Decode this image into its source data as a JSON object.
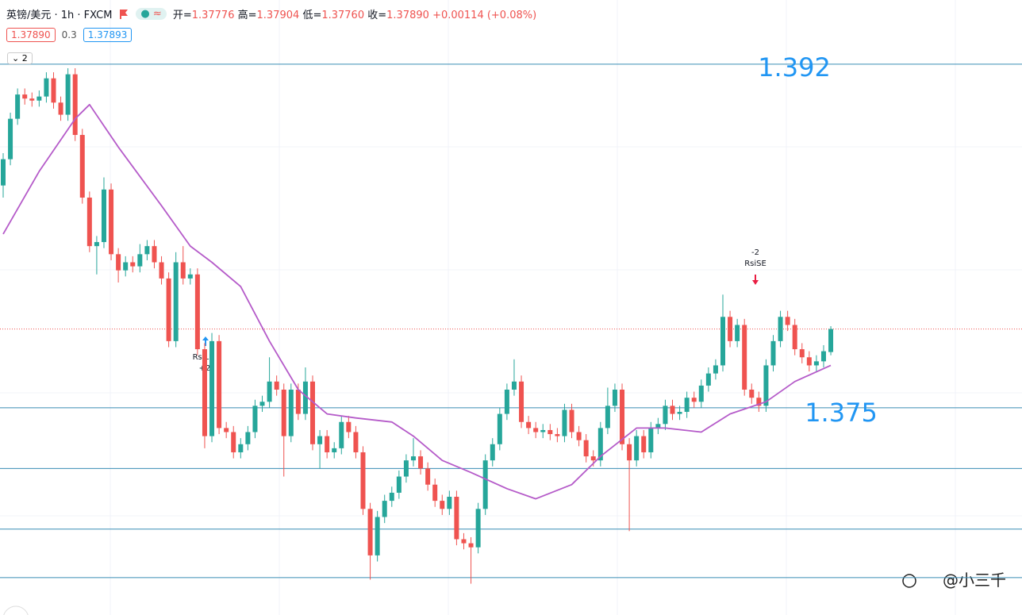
{
  "header": {
    "symbol": "英镑/美元 · 1h · FXCM",
    "ohlc": [
      {
        "label": "开=",
        "value": "1.37776"
      },
      {
        "label": "高=",
        "value": "1.37904"
      },
      {
        "label": "低=",
        "value": "1.37760"
      },
      {
        "label": "收=",
        "value": "1.37890"
      }
    ],
    "change": "+0.00114 (+0.08%)",
    "bid": "1.37890",
    "spread": "0.3",
    "ask": "1.37893",
    "collapse": "2"
  },
  "watermark": "@小三千",
  "annotations": {
    "long": {
      "name": "RsiLE",
      "qty": "+2"
    },
    "short": {
      "name": "RsiSE",
      "qty": "-2"
    }
  },
  "chart_data": {
    "type": "candlestick",
    "ylim": [
      1.36534,
      1.39282
    ],
    "up_color": "#26a69a",
    "down_color": "#ef5350",
    "open": [
      1.386,
      1.3873,
      1.3893,
      1.3905,
      1.3903,
      1.3902,
      1.3904,
      1.3913,
      1.3901,
      1.3895,
      1.3915,
      1.3885,
      1.3854,
      1.383,
      1.3832,
      1.3858,
      1.3826,
      1.3818,
      1.3822,
      1.382,
      1.3826,
      1.383,
      1.3822,
      1.3814,
      1.3783,
      1.3822,
      1.3814,
      1.3816,
      1.3779,
      1.3736,
      1.3783,
      1.374,
      1.3738,
      1.3728,
      1.3732,
      1.3738,
      1.3751,
      1.3753,
      1.3763,
      1.3759,
      1.3736,
      1.3759,
      1.3747,
      1.3763,
      1.3732,
      1.3736,
      1.3728,
      1.373,
      1.3743,
      1.3738,
      1.3728,
      1.37,
      1.3677,
      1.3696,
      1.3704,
      1.3708,
      1.3716,
      1.3724,
      1.3726,
      1.372,
      1.3712,
      1.3704,
      1.37,
      1.3706,
      1.3685,
      1.3683,
      1.3681,
      1.37,
      1.3724,
      1.3732,
      1.3747,
      1.3759,
      1.3763,
      1.3743,
      1.374,
      1.3738,
      1.3739,
      1.3737,
      1.3736,
      1.3749,
      1.3738,
      1.3734,
      1.3726,
      1.3724,
      1.374,
      1.3751,
      1.3759,
      1.3732,
      1.3724,
      1.3736,
      1.3728,
      1.374,
      1.3742,
      1.3751,
      1.3747,
      1.3748,
      1.3755,
      1.3753,
      1.3761,
      1.3767,
      1.3771,
      1.3795,
      1.3783,
      1.3791,
      1.3759,
      1.3755,
      1.3751,
      1.3771,
      1.3783,
      1.3795,
      1.3791,
      1.3779,
      1.3775,
      1.3771,
      1.3773,
      1.37776
    ],
    "high": [
      1.3876,
      1.3896,
      1.3908,
      1.3908,
      1.3906,
      1.3907,
      1.3916,
      1.3916,
      1.3904,
      1.3918,
      1.3918,
      1.3888,
      1.3857,
      1.3835,
      1.3864,
      1.3861,
      1.3829,
      1.3825,
      1.3825,
      1.3831,
      1.3833,
      1.3833,
      1.3825,
      1.3817,
      1.3827,
      1.383,
      1.3819,
      1.3819,
      1.3782,
      1.3787,
      1.3786,
      1.3743,
      1.3741,
      1.3735,
      1.3741,
      1.3754,
      1.3756,
      1.3775,
      1.3766,
      1.3762,
      1.3762,
      1.3762,
      1.377,
      1.3766,
      1.3739,
      1.3739,
      1.3733,
      1.3746,
      1.3746,
      1.3741,
      1.3731,
      1.3703,
      1.3699,
      1.3707,
      1.3711,
      1.3719,
      1.3727,
      1.3735,
      1.3729,
      1.3723,
      1.3715,
      1.3707,
      1.3709,
      1.3709,
      1.3688,
      1.3686,
      1.3703,
      1.3727,
      1.3735,
      1.375,
      1.3762,
      1.3774,
      1.3766,
      1.3746,
      1.3743,
      1.3742,
      1.3742,
      1.374,
      1.3752,
      1.3752,
      1.3741,
      1.3737,
      1.3729,
      1.3743,
      1.376,
      1.3762,
      1.3762,
      1.3735,
      1.3739,
      1.3739,
      1.3743,
      1.3745,
      1.3754,
      1.3754,
      1.3751,
      1.3758,
      1.3758,
      1.3764,
      1.377,
      1.3774,
      1.3806,
      1.3798,
      1.3794,
      1.3794,
      1.3762,
      1.3758,
      1.3774,
      1.3786,
      1.3798,
      1.3798,
      1.3794,
      1.3782,
      1.3778,
      1.3776,
      1.3781,
      1.37904
    ],
    "low": [
      1.3854,
      1.387,
      1.389,
      1.39,
      1.3899,
      1.3899,
      1.3901,
      1.3898,
      1.3892,
      1.3892,
      1.3882,
      1.3851,
      1.3827,
      1.3816,
      1.3829,
      1.3823,
      1.3812,
      1.3815,
      1.3817,
      1.3817,
      1.3823,
      1.3819,
      1.3811,
      1.378,
      1.378,
      1.3811,
      1.3811,
      1.3776,
      1.373,
      1.3733,
      1.3737,
      1.3735,
      1.3725,
      1.3725,
      1.3729,
      1.3735,
      1.3748,
      1.375,
      1.3756,
      1.3716,
      1.3733,
      1.3744,
      1.3744,
      1.3729,
      1.372,
      1.3725,
      1.3725,
      1.3727,
      1.3735,
      1.3725,
      1.3697,
      1.3665,
      1.3674,
      1.3693,
      1.3701,
      1.3705,
      1.3713,
      1.3721,
      1.3717,
      1.3709,
      1.3701,
      1.3697,
      1.3697,
      1.3682,
      1.368,
      1.3663,
      1.3678,
      1.3697,
      1.3721,
      1.3729,
      1.3744,
      1.3756,
      1.374,
      1.3737,
      1.3735,
      1.3735,
      1.3734,
      1.3733,
      1.3733,
      1.3735,
      1.3731,
      1.3723,
      1.3721,
      1.3721,
      1.3737,
      1.3748,
      1.3729,
      1.3689,
      1.3721,
      1.3725,
      1.3725,
      1.3737,
      1.3739,
      1.3744,
      1.3744,
      1.3745,
      1.375,
      1.375,
      1.3758,
      1.3764,
      1.3768,
      1.378,
      1.378,
      1.3756,
      1.3752,
      1.3748,
      1.3748,
      1.3768,
      1.378,
      1.3788,
      1.3776,
      1.3772,
      1.3768,
      1.3768,
      1.377,
      1.3776
    ],
    "close": [
      1.3873,
      1.3893,
      1.3905,
      1.3903,
      1.3902,
      1.3904,
      1.3913,
      1.3901,
      1.3895,
      1.3915,
      1.3885,
      1.3854,
      1.383,
      1.3832,
      1.3858,
      1.3826,
      1.3818,
      1.3822,
      1.382,
      1.3826,
      1.383,
      1.3822,
      1.3814,
      1.3783,
      1.3822,
      1.3814,
      1.3816,
      1.3779,
      1.3736,
      1.3783,
      1.374,
      1.3738,
      1.3728,
      1.3732,
      1.3738,
      1.3751,
      1.3753,
      1.3763,
      1.3759,
      1.3736,
      1.3759,
      1.3747,
      1.3763,
      1.3732,
      1.3736,
      1.3728,
      1.373,
      1.3743,
      1.3738,
      1.3728,
      1.37,
      1.3677,
      1.3696,
      1.3704,
      1.3708,
      1.3716,
      1.3724,
      1.3726,
      1.372,
      1.3712,
      1.3704,
      1.37,
      1.3706,
      1.3685,
      1.3683,
      1.3681,
      1.37,
      1.3724,
      1.3732,
      1.3747,
      1.3759,
      1.3763,
      1.3743,
      1.374,
      1.3738,
      1.3739,
      1.3737,
      1.3736,
      1.3749,
      1.3738,
      1.3734,
      1.3726,
      1.3724,
      1.374,
      1.3751,
      1.3759,
      1.3732,
      1.3724,
      1.3736,
      1.3728,
      1.374,
      1.3742,
      1.3751,
      1.3747,
      1.3748,
      1.3755,
      1.3753,
      1.3761,
      1.3767,
      1.3771,
      1.3795,
      1.3783,
      1.3791,
      1.3759,
      1.3755,
      1.3751,
      1.3771,
      1.3783,
      1.3795,
      1.3791,
      1.3779,
      1.3775,
      1.3771,
      1.3773,
      1.3778,
      1.3789
    ],
    "ma": {
      "color": "#b55bc9",
      "x": [
        0,
        5,
        10,
        12,
        16,
        22,
        26,
        29,
        33,
        37,
        41,
        45,
        49,
        54,
        57,
        61,
        65,
        70,
        74,
        79,
        83,
        88,
        92,
        97,
        101,
        106,
        110,
        115
      ],
      "values": [
        1.3836,
        1.3867,
        1.3893,
        1.39,
        1.3879,
        1.385,
        1.383,
        1.3822,
        1.381,
        1.3783,
        1.3759,
        1.3747,
        1.3745,
        1.3743,
        1.3736,
        1.3724,
        1.3718,
        1.371,
        1.3705,
        1.3712,
        1.3726,
        1.374,
        1.374,
        1.3738,
        1.3747,
        1.3753,
        1.3763,
        1.3771
      ]
    },
    "levels": [
      1.392,
      1.375,
      1.372,
      1.369,
      1.3666
    ],
    "level_color": "#3a8db5",
    "label_color": "#2196f3"
  }
}
